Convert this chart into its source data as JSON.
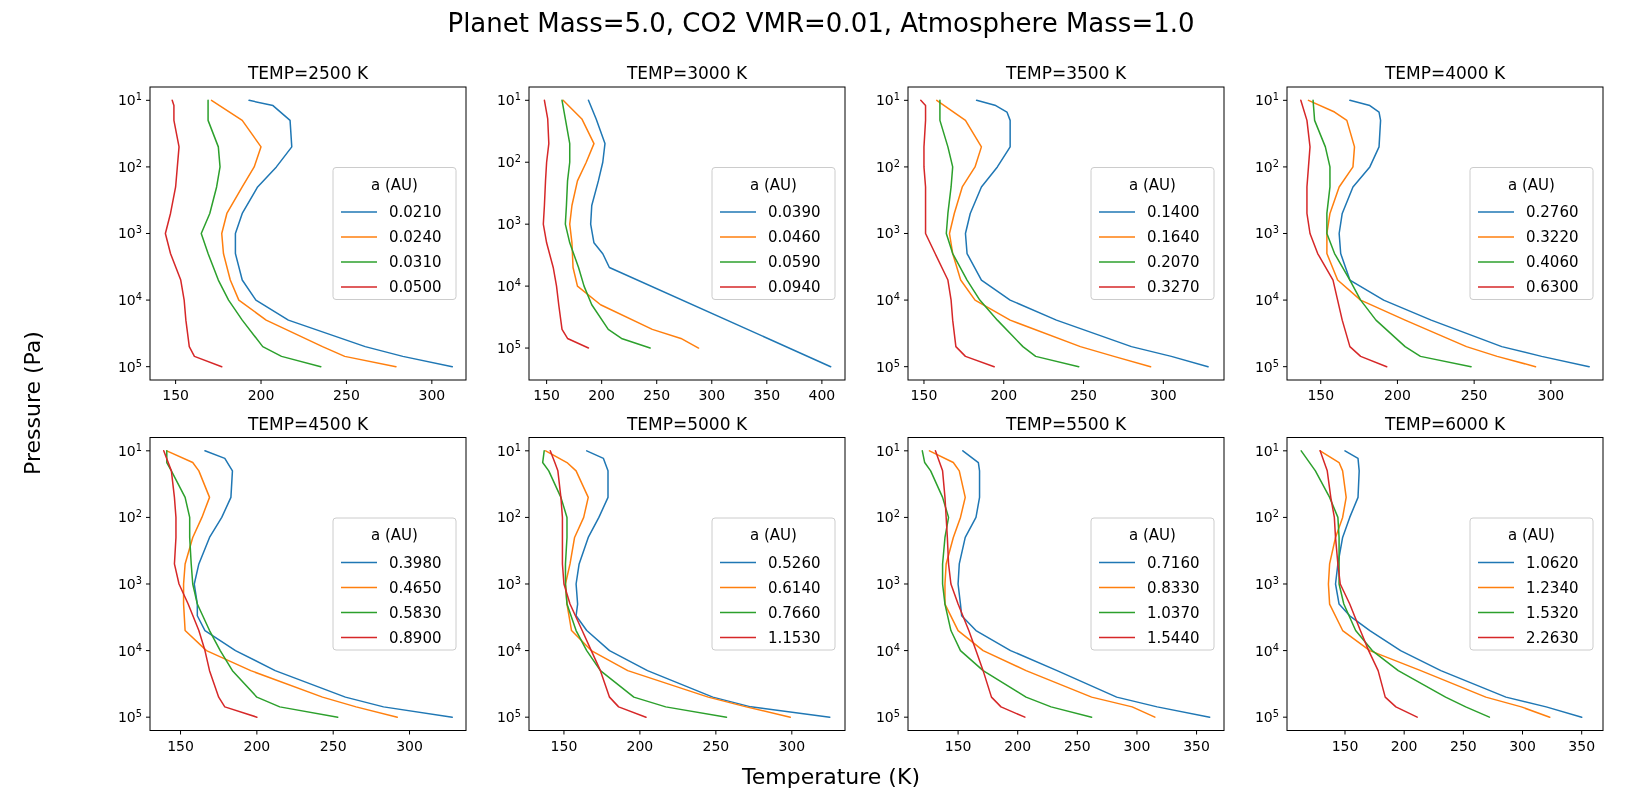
{
  "chart_data": [
    {
      "type": "other",
      "title": "Planet Mass=5.0, CO2 VMR=0.01, Atmosphere Mass=1.0",
      "xlabel": "Temperature (K)",
      "ylabel": "Pressure (Pa)"
    },
    {
      "type": "line",
      "title": "TEMP=2500 K",
      "log": "y",
      "legend": "right",
      "legend_title": "a (AU)",
      "xlim": [
        135,
        320
      ],
      "xticks": [
        150,
        200,
        250,
        300
      ],
      "ylim": [
        158489,
        6.31
      ],
      "yticks": [
        {
          "value": 10,
          "label": "10$^{1}$"
        },
        {
          "value": 100,
          "label": "10$^{2}$"
        },
        {
          "value": 1000,
          "label": "10$^{3}$"
        },
        {
          "value": 10000,
          "label": "10$^{4}$"
        },
        {
          "value": 100000,
          "label": "10$^{5}$"
        }
      ],
      "series": [
        {
          "name": "0.0210",
          "color": "#1f77b4",
          "x": [
            193,
            207,
            217,
            218,
            209,
            198,
            189,
            185,
            185,
            189,
            197,
            216,
            261,
            283,
            312
          ],
          "values": [
            10,
            12,
            20,
            50,
            100,
            200,
            500,
            1000,
            2000,
            5000,
            10000,
            20000,
            50000,
            70000,
            100000
          ]
        },
        {
          "name": "0.0240",
          "color": "#ff7f0e",
          "x": [
            171,
            189,
            200,
            196,
            189,
            180,
            177,
            178,
            182,
            187,
            203,
            236,
            249,
            279
          ],
          "values": [
            10,
            20,
            50,
            100,
            200,
            500,
            1000,
            2000,
            5000,
            10000,
            20000,
            50000,
            70000,
            100000
          ]
        },
        {
          "name": "0.0310",
          "color": "#2ca02c",
          "x": [
            169,
            169,
            175,
            176,
            174,
            170,
            165,
            169,
            175,
            181,
            189,
            201,
            212,
            235
          ],
          "values": [
            10,
            20,
            50,
            100,
            200,
            500,
            1000,
            2000,
            5000,
            10000,
            20000,
            50000,
            70000,
            100000
          ]
        },
        {
          "name": "0.0500",
          "color": "#d62728",
          "x": [
            148,
            149,
            149,
            152,
            151,
            150,
            147,
            144,
            147,
            153,
            155,
            156,
            158,
            161,
            177
          ],
          "values": [
            10,
            12,
            20,
            50,
            100,
            200,
            500,
            1000,
            2000,
            5000,
            10000,
            20000,
            50000,
            70000,
            100000
          ]
        }
      ]
    },
    {
      "type": "line",
      "title": "TEMP=3000 K",
      "log": "y",
      "legend": "right",
      "legend_title": "a (AU)",
      "xlim": [
        134,
        421
      ],
      "xticks": [
        150,
        200,
        250,
        300,
        350,
        400
      ],
      "ylim": [
        328000,
        6.1
      ],
      "yticks": [
        {
          "value": 10,
          "label": "10$^{1}$"
        },
        {
          "value": 100,
          "label": "10$^{2}$"
        },
        {
          "value": 1000,
          "label": "10$^{3}$"
        },
        {
          "value": 10000,
          "label": "10$^{4}$"
        },
        {
          "value": 100000,
          "label": "10$^{5}$"
        }
      ],
      "series": [
        {
          "name": "0.0390",
          "color": "#1f77b4",
          "x": [
            188,
            195,
            203,
            201,
            197,
            191,
            190,
            193,
            201,
            207,
            408
          ],
          "values": [
            10,
            20,
            50,
            100,
            200,
            500,
            1000,
            2000,
            3000,
            5000,
            200000
          ]
        },
        {
          "name": "0.0460",
          "color": "#ff7f0e",
          "x": [
            165,
            182,
            193,
            186,
            178,
            173,
            171,
            173,
            174,
            178,
            199,
            246,
            272,
            288
          ],
          "values": [
            10,
            20,
            50,
            100,
            200,
            500,
            1000,
            2000,
            5000,
            10000,
            20000,
            50000,
            70000,
            100000
          ]
        },
        {
          "name": "0.0590",
          "color": "#2ca02c",
          "x": [
            164,
            167,
            171,
            171,
            169,
            168,
            167,
            171,
            179,
            184,
            191,
            206,
            218,
            244
          ],
          "values": [
            10,
            20,
            50,
            100,
            200,
            500,
            1000,
            2000,
            5000,
            10000,
            20000,
            50000,
            70000,
            100000
          ]
        },
        {
          "name": "0.0940",
          "color": "#d62728",
          "x": [
            148,
            151,
            152,
            150,
            149,
            148,
            147,
            150,
            156,
            159,
            161,
            164,
            169,
            188
          ],
          "values": [
            10,
            20,
            50,
            100,
            200,
            500,
            1000,
            2000,
            5000,
            10000,
            20000,
            50000,
            70000,
            100000
          ]
        }
      ]
    },
    {
      "type": "line",
      "title": "TEMP=3500 K",
      "log": "y",
      "legend": "right",
      "legend_title": "a (AU)",
      "xlim": [
        140,
        338
      ],
      "xticks": [
        150,
        200,
        250,
        300
      ],
      "ylim": [
        158489,
        6.31
      ],
      "yticks": [
        {
          "value": 10,
          "label": "10$^{1}$"
        },
        {
          "value": 100,
          "label": "10$^{2}$"
        },
        {
          "value": 1000,
          "label": "10$^{3}$"
        },
        {
          "value": 10000,
          "label": "10$^{4}$"
        },
        {
          "value": 100000,
          "label": "10$^{5}$"
        }
      ],
      "series": [
        {
          "name": "0.1400",
          "color": "#1f77b4",
          "x": [
            183,
            195,
            202,
            204,
            204,
            196,
            186,
            179,
            176,
            177,
            186,
            204,
            233,
            280,
            305,
            328
          ],
          "values": [
            10,
            12,
            15,
            20,
            50,
            100,
            200,
            500,
            1000,
            2000,
            5000,
            10000,
            20000,
            50000,
            70000,
            100000
          ]
        },
        {
          "name": "0.1640",
          "color": "#ff7f0e",
          "x": [
            158,
            176,
            186,
            182,
            174,
            169,
            166,
            168,
            173,
            182,
            204,
            248,
            269,
            292
          ],
          "values": [
            10,
            20,
            50,
            100,
            200,
            500,
            1000,
            2000,
            5000,
            10000,
            20000,
            50000,
            70000,
            100000
          ]
        },
        {
          "name": "0.2070",
          "color": "#2ca02c",
          "x": [
            160,
            160,
            165,
            168,
            167,
            165,
            164,
            168,
            177,
            185,
            196,
            212,
            220,
            247
          ],
          "values": [
            10,
            20,
            50,
            100,
            200,
            500,
            1000,
            2000,
            5000,
            10000,
            20000,
            50000,
            70000,
            100000
          ]
        },
        {
          "name": "0.3270",
          "color": "#d62728",
          "x": [
            148,
            151,
            151,
            150,
            150,
            151,
            151,
            151,
            157,
            165,
            167,
            168,
            170,
            176,
            194
          ],
          "values": [
            10,
            12,
            20,
            50,
            100,
            200,
            500,
            1000,
            2000,
            5000,
            10000,
            20000,
            50000,
            70000,
            100000
          ]
        }
      ]
    },
    {
      "type": "line",
      "title": "TEMP=4000 K",
      "log": "y",
      "legend": "right",
      "legend_title": "a (AU)",
      "xlim": [
        128,
        334
      ],
      "xticks": [
        150,
        200,
        250,
        300
      ],
      "ylim": [
        158489,
        6.31
      ],
      "yticks": [
        {
          "value": 10,
          "label": "10$^{1}$"
        },
        {
          "value": 100,
          "label": "10$^{2}$"
        },
        {
          "value": 1000,
          "label": "10$^{3}$"
        },
        {
          "value": 10000,
          "label": "10$^{4}$"
        },
        {
          "value": 100000,
          "label": "10$^{5}$"
        }
      ],
      "series": [
        {
          "name": "0.2760",
          "color": "#1f77b4",
          "x": [
            169,
            182,
            188,
            189,
            188,
            182,
            171,
            164,
            162,
            163,
            169,
            191,
            222,
            268,
            294,
            325
          ],
          "values": [
            10,
            12,
            15,
            20,
            50,
            100,
            200,
            500,
            1000,
            2000,
            5000,
            10000,
            20000,
            50000,
            70000,
            100000
          ]
        },
        {
          "name": "0.3220",
          "color": "#ff7f0e",
          "x": [
            142,
            159,
            167,
            172,
            171,
            162,
            156,
            154,
            154,
            161,
            176,
            205,
            245,
            265,
            290
          ],
          "values": [
            10,
            15,
            20,
            50,
            100,
            200,
            500,
            1000,
            2000,
            5000,
            10000,
            20000,
            50000,
            70000,
            100000
          ]
        },
        {
          "name": "0.4060",
          "color": "#2ca02c",
          "x": [
            145,
            146,
            153,
            156,
            156,
            154,
            154,
            159,
            169,
            176,
            186,
            205,
            215,
            248
          ],
          "values": [
            10,
            20,
            50,
            100,
            200,
            500,
            1000,
            2000,
            5000,
            10000,
            20000,
            50000,
            70000,
            100000
          ]
        },
        {
          "name": "0.6300",
          "color": "#d62728",
          "x": [
            137,
            141,
            143,
            142,
            141,
            141,
            143,
            148,
            158,
            161,
            164,
            169,
            176,
            193
          ],
          "values": [
            10,
            20,
            50,
            100,
            200,
            500,
            1000,
            2000,
            5000,
            10000,
            20000,
            50000,
            70000,
            100000
          ]
        }
      ]
    },
    {
      "type": "line",
      "title": "TEMP=4500 K",
      "log": "y",
      "legend": "right",
      "legend_title": "a (AU)",
      "xlim": [
        130,
        337
      ],
      "xticks": [
        150,
        200,
        250,
        300
      ],
      "ylim": [
        158489,
        6.31
      ],
      "yticks": [
        {
          "value": 10,
          "label": "10$^{1}$"
        },
        {
          "value": 100,
          "label": "10$^{2}$"
        },
        {
          "value": 1000,
          "label": "10$^{3}$"
        },
        {
          "value": 10000,
          "label": "10$^{4}$"
        },
        {
          "value": 100000,
          "label": "10$^{5}$"
        }
      ],
      "series": [
        {
          "name": "0.3980",
          "color": "#1f77b4",
          "x": [
            166,
            179,
            184,
            183,
            177,
            169,
            162,
            159,
            161,
            161,
            166,
            186,
            212,
            258,
            283,
            328
          ],
          "values": [
            10,
            13,
            20,
            50,
            100,
            200,
            500,
            1000,
            2000,
            3000,
            5000,
            10000,
            20000,
            50000,
            70000,
            100000
          ]
        },
        {
          "name": "0.4650",
          "color": "#ff7f0e",
          "x": [
            141,
            158,
            162,
            169,
            164,
            158,
            153,
            152,
            152,
            153,
            167,
            196,
            243,
            265,
            292
          ],
          "values": [
            10,
            15,
            20,
            50,
            100,
            200,
            500,
            1000,
            2000,
            5000,
            10000,
            20000,
            50000,
            70000,
            100000
          ]
        },
        {
          "name": "0.5830",
          "color": "#2ca02c",
          "x": [
            141,
            141,
            144,
            153,
            156,
            156,
            157,
            158,
            161,
            169,
            176,
            184,
            200,
            215,
            253
          ],
          "values": [
            10,
            15,
            20,
            50,
            100,
            200,
            500,
            1000,
            2000,
            5000,
            10000,
            20000,
            50000,
            70000,
            100000
          ]
        },
        {
          "name": "0.8900",
          "color": "#d62728",
          "x": [
            139,
            144,
            146,
            147,
            147,
            146,
            149,
            155,
            162,
            166,
            169,
            175,
            179,
            200
          ],
          "values": [
            10,
            20,
            50,
            100,
            200,
            500,
            1000,
            2000,
            5000,
            10000,
            20000,
            50000,
            70000,
            100000
          ]
        }
      ]
    },
    {
      "type": "line",
      "title": "TEMP=5000 K",
      "log": "y",
      "legend": "right",
      "legend_title": "a (AU)",
      "xlim": [
        127,
        335
      ],
      "xticks": [
        150,
        200,
        250,
        300
      ],
      "ylim": [
        158489,
        6.31
      ],
      "yticks": [
        {
          "value": 10,
          "label": "10$^{1}$"
        },
        {
          "value": 100,
          "label": "10$^{2}$"
        },
        {
          "value": 1000,
          "label": "10$^{3}$"
        },
        {
          "value": 10000,
          "label": "10$^{4}$"
        },
        {
          "value": 100000,
          "label": "10$^{5}$"
        }
      ],
      "series": [
        {
          "name": "0.5260",
          "color": "#1f77b4",
          "x": [
            165,
            176,
            179,
            179,
            173,
            166,
            160,
            158,
            159,
            158,
            165,
            180,
            205,
            248,
            273,
            325
          ],
          "values": [
            10,
            13,
            20,
            50,
            100,
            200,
            500,
            1000,
            2000,
            3000,
            5000,
            10000,
            20000,
            50000,
            70000,
            100000
          ]
        },
        {
          "name": "0.6140",
          "color": "#ff7f0e",
          "x": [
            138,
            152,
            158,
            166,
            163,
            157,
            154,
            151,
            152,
            155,
            168,
            192,
            245,
            270,
            299
          ],
          "values": [
            10,
            15,
            20,
            50,
            100,
            200,
            500,
            1000,
            2000,
            5000,
            10000,
            20000,
            50000,
            70000,
            100000
          ]
        },
        {
          "name": "0.7660",
          "color": "#2ca02c",
          "x": [
            137,
            136,
            140,
            148,
            152,
            152,
            151,
            151,
            152,
            158,
            165,
            174,
            196,
            217,
            257
          ],
          "values": [
            10,
            15,
            20,
            50,
            100,
            200,
            500,
            1000,
            2000,
            5000,
            10000,
            20000,
            50000,
            70000,
            100000
          ]
        },
        {
          "name": "1.1530",
          "color": "#d62728",
          "x": [
            141,
            144,
            146,
            148,
            149,
            149,
            149,
            150,
            154,
            162,
            168,
            174,
            180,
            186,
            204
          ],
          "values": [
            10,
            15,
            20,
            50,
            100,
            200,
            500,
            1000,
            2000,
            5000,
            10000,
            20000,
            50000,
            70000,
            100000
          ]
        }
      ]
    },
    {
      "type": "line",
      "title": "TEMP=5500 K",
      "log": "y",
      "legend": "right",
      "legend_title": "a (AU)",
      "xlim": [
        108,
        373
      ],
      "xticks": [
        150,
        200,
        250,
        300,
        350
      ],
      "ylim": [
        158489,
        6.31
      ],
      "yticks": [
        {
          "value": 10,
          "label": "10$^{1}$"
        },
        {
          "value": 100,
          "label": "10$^{2}$"
        },
        {
          "value": 1000,
          "label": "10$^{3}$"
        },
        {
          "value": 10000,
          "label": "10$^{4}$"
        },
        {
          "value": 100000,
          "label": "10$^{5}$"
        }
      ],
      "series": [
        {
          "name": "0.7160",
          "color": "#1f77b4",
          "x": [
            154,
            167,
            168,
            168,
            165,
            156,
            151,
            150,
            152,
            153,
            165,
            194,
            233,
            283,
            317,
            361
          ],
          "values": [
            10,
            15,
            20,
            50,
            100,
            200,
            500,
            1000,
            2000,
            3000,
            5000,
            10000,
            20000,
            50000,
            70000,
            100000
          ]
        },
        {
          "name": "0.8330",
          "color": "#ff7f0e",
          "x": [
            126,
            146,
            151,
            156,
            152,
            146,
            140,
            139,
            139,
            150,
            171,
            207,
            262,
            296,
            315
          ],
          "values": [
            10,
            15,
            20,
            50,
            100,
            200,
            500,
            1000,
            2000,
            5000,
            10000,
            20000,
            50000,
            70000,
            100000
          ]
        },
        {
          "name": "1.0370",
          "color": "#2ca02c",
          "x": [
            120,
            122,
            127,
            137,
            142,
            139,
            137,
            137,
            139,
            144,
            152,
            171,
            207,
            228,
            262
          ],
          "values": [
            10,
            15,
            20,
            50,
            100,
            200,
            500,
            1000,
            2000,
            5000,
            10000,
            20000,
            50000,
            70000,
            100000
          ]
        },
        {
          "name": "1.5440",
          "color": "#d62728",
          "x": [
            131,
            137,
            139,
            140,
            141,
            142,
            144,
            150,
            159,
            165,
            171,
            178,
            186,
            206
          ],
          "values": [
            10,
            20,
            50,
            100,
            200,
            500,
            1000,
            2000,
            5000,
            10000,
            20000,
            50000,
            70000,
            100000
          ]
        }
      ]
    },
    {
      "type": "line",
      "title": "TEMP=6000 K",
      "log": "y",
      "legend": "right",
      "legend_title": "a (AU)",
      "xlim": [
        101,
        368
      ],
      "xticks": [
        150,
        200,
        250,
        300,
        350
      ],
      "ylim": [
        158489,
        6.31
      ],
      "yticks": [
        {
          "value": 10,
          "label": "10$^{1}$"
        },
        {
          "value": 100,
          "label": "10$^{2}$"
        },
        {
          "value": 1000,
          "label": "10$^{3}$"
        },
        {
          "value": 10000,
          "label": "10$^{4}$"
        },
        {
          "value": 100000,
          "label": "10$^{5}$"
        }
      ],
      "series": [
        {
          "name": "1.0620",
          "color": "#1f77b4",
          "x": [
            150,
            161,
            162,
            161,
            154,
            148,
            144,
            142,
            145,
            154,
            171,
            197,
            231,
            286,
            320,
            350
          ],
          "values": [
            10,
            13,
            20,
            50,
            100,
            200,
            500,
            1000,
            2000,
            3000,
            5000,
            10000,
            20000,
            50000,
            70000,
            100000
          ]
        },
        {
          "name": "1.2340",
          "color": "#ff7f0e",
          "x": [
            129,
            145,
            148,
            151,
            148,
            142,
            137,
            136,
            137,
            148,
            171,
            214,
            269,
            299,
            323
          ],
          "values": [
            10,
            15,
            20,
            50,
            100,
            200,
            500,
            1000,
            2000,
            5000,
            10000,
            20000,
            50000,
            70000,
            100000
          ]
        },
        {
          "name": "1.5320",
          "color": "#2ca02c",
          "x": [
            113,
            125,
            137,
            144,
            145,
            145,
            145,
            149,
            159,
            173,
            195,
            235,
            252,
            272
          ],
          "values": [
            10,
            20,
            50,
            100,
            200,
            500,
            1000,
            2000,
            5000,
            10000,
            20000,
            50000,
            70000,
            100000
          ]
        },
        {
          "name": "2.2630",
          "color": "#d62728",
          "x": [
            129,
            135,
            138,
            141,
            142,
            144,
            146,
            154,
            163,
            170,
            178,
            184,
            193,
            211
          ],
          "values": [
            10,
            20,
            50,
            100,
            200,
            500,
            1000,
            2000,
            5000,
            10000,
            20000,
            50000,
            70000,
            100000
          ]
        }
      ]
    }
  ]
}
